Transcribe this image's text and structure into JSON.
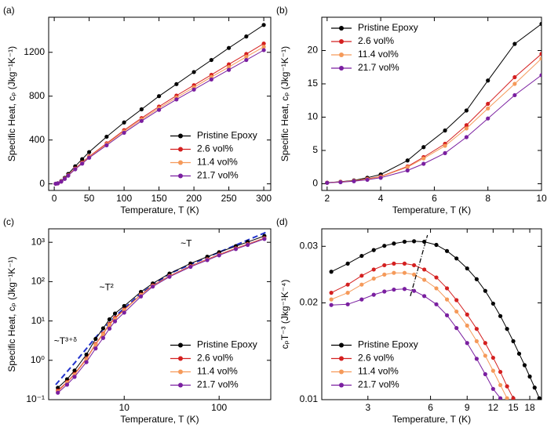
{
  "chart_data": [
    {
      "type": "line",
      "panel_label": "(a)",
      "x_label": "Temperature, T (K)",
      "y_label": "Specific Heat, cₚ (Jkg⁻¹K⁻¹)",
      "xlim": [
        -8,
        310
      ],
      "ylim": [
        -60,
        1520
      ],
      "xticks": [
        0,
        50,
        100,
        150,
        200,
        250,
        300
      ],
      "yticks": [
        0,
        400,
        800,
        1200
      ],
      "legend": "lower right",
      "x": [
        2,
        5,
        10,
        15,
        20,
        30,
        40,
        50,
        75,
        100,
        125,
        150,
        175,
        200,
        225,
        250,
        275,
        300
      ],
      "series": [
        {
          "name": "Pristine Epoxy",
          "color": "#000000",
          "values": [
            1,
            5,
            25,
            55,
            90,
            160,
            225,
            290,
            430,
            560,
            680,
            800,
            910,
            1020,
            1130,
            1240,
            1345,
            1450
          ]
        },
        {
          "name": "2.6 vol%",
          "color": "#d42020",
          "values": [
            1,
            4,
            22,
            48,
            80,
            140,
            195,
            250,
            370,
            490,
            600,
            705,
            805,
            900,
            995,
            1090,
            1185,
            1280
          ]
        },
        {
          "name": "11.4 vol%",
          "color": "#f59a5a",
          "values": [
            1,
            4,
            21,
            47,
            78,
            137,
            190,
            245,
            362,
            478,
            588,
            690,
            787,
            880,
            975,
            1065,
            1160,
            1250
          ]
        },
        {
          "name": "21.7 vol%",
          "color": "#7a1fa0",
          "values": [
            1,
            4,
            20,
            45,
            75,
            133,
            185,
            238,
            352,
            466,
            574,
            675,
            770,
            860,
            952,
            1040,
            1130,
            1220
          ]
        }
      ]
    },
    {
      "type": "line",
      "panel_label": "(b)",
      "x_label": "Temperature, T (K)",
      "y_label": "Specific Heat, cₚ (Jkg⁻¹K⁻¹)",
      "xlim": [
        1.8,
        10
      ],
      "ylim": [
        -1,
        25
      ],
      "xticks": [
        2,
        4,
        6,
        8,
        10
      ],
      "yticks": [
        0,
        5,
        10,
        15,
        20
      ],
      "legend": "upper left",
      "x": [
        2,
        2.5,
        3,
        3.5,
        4,
        5,
        5.6,
        6.4,
        7.2,
        8,
        9,
        10
      ],
      "series": [
        {
          "name": "Pristine Epoxy",
          "color": "#000000",
          "values": [
            0.17,
            0.3,
            0.5,
            0.9,
            1.4,
            3.5,
            5.5,
            8,
            11,
            15.5,
            21,
            24
          ]
        },
        {
          "name": "2.6 vol%",
          "color": "#d42020",
          "values": [
            0.16,
            0.28,
            0.45,
            0.75,
            1.1,
            2.6,
            4,
            6,
            8.8,
            12,
            16,
            19.5
          ]
        },
        {
          "name": "11.4 vol%",
          "color": "#f59a5a",
          "values": [
            0.15,
            0.26,
            0.43,
            0.7,
            1.05,
            2.5,
            3.8,
            5.7,
            8.3,
            11.3,
            15,
            18.8
          ]
        },
        {
          "name": "21.7 vol%",
          "color": "#7a1fa0",
          "values": [
            0.14,
            0.23,
            0.38,
            0.6,
            0.9,
            2,
            3,
            4.6,
            7,
            9.8,
            13.3,
            16.3
          ]
        }
      ]
    },
    {
      "type": "line",
      "panel_label": "(c)",
      "x_label": "Temperature, T (K)",
      "y_label": "Specific Heat, cₚ (Jkg⁻¹K⁻¹)",
      "xscale": "log",
      "yscale": "log",
      "xlim": [
        1.6,
        350
      ],
      "ylim": [
        0.1,
        2200
      ],
      "xticks": [
        10,
        100
      ],
      "yticks": [
        {
          "value": 0.1,
          "label": "10⁻¹"
        },
        {
          "value": 1,
          "label": "10⁰"
        },
        {
          "value": 10,
          "label": "10¹"
        },
        {
          "value": 100,
          "label": "10²"
        },
        {
          "value": 1000,
          "label": "10³"
        }
      ],
      "legend": "lower right",
      "x": [
        2,
        2.5,
        3,
        4,
        5,
        6,
        7,
        8,
        10,
        15,
        20,
        30,
        50,
        75,
        100,
        150,
        200,
        300
      ],
      "series": [
        {
          "name": "Pristine Epoxy",
          "color": "#000000",
          "values": [
            0.2,
            0.33,
            0.55,
            1.4,
            3.5,
            6.5,
            11,
            15.5,
            24,
            55,
            90,
            160,
            290,
            430,
            560,
            800,
            1020,
            1450
          ]
        },
        {
          "name": "2.6 vol%",
          "color": "#d42020",
          "values": [
            0.17,
            0.28,
            0.45,
            1.1,
            2.6,
            4.8,
            8.4,
            12,
            19.5,
            47,
            80,
            140,
            250,
            370,
            490,
            705,
            900,
            1280
          ]
        },
        {
          "name": "11.4 vol%",
          "color": "#f59a5a",
          "values": [
            0.16,
            0.27,
            0.43,
            1.05,
            2.5,
            4.6,
            8,
            11.3,
            18.8,
            46,
            78,
            137,
            245,
            362,
            478,
            690,
            880,
            1250
          ]
        },
        {
          "name": "21.7 vol%",
          "color": "#7a1fa0",
          "values": [
            0.15,
            0.24,
            0.38,
            0.9,
            2,
            3.7,
            6.4,
            9.8,
            16.3,
            42,
            75,
            133,
            238,
            352,
            466,
            675,
            860,
            1220
          ]
        }
      ],
      "fit": {
        "color": "#2233cc",
        "x": [
          1.9,
          3,
          5,
          8,
          15,
          30,
          100,
          330
        ],
        "y": [
          0.24,
          0.85,
          3.8,
          13,
          50,
          160,
          560,
          1900
        ]
      },
      "annotations": [
        {
          "text": "~T",
          "x": 45,
          "y": 900
        },
        {
          "text": "~T²",
          "x": 6.5,
          "y": 70
        },
        {
          "text": "~T³⁺ᵟ",
          "x": 2.4,
          "y": 3
        }
      ]
    },
    {
      "type": "line",
      "panel_label": "(d)",
      "x_label": "Temperature, T (K)",
      "y_label": "cₚT⁻³ (Jkg⁻¹K⁻⁴)",
      "xscale": "log",
      "yscale": "log",
      "xlim": [
        1.8,
        20.5
      ],
      "ylim": [
        0.01,
        0.034
      ],
      "xticks": [
        3,
        6,
        9,
        12,
        15,
        18
      ],
      "yticks": [
        0.01,
        0.02,
        0.03
      ],
      "legend": "lower left",
      "x": [
        2,
        2.4,
        2.8,
        3.2,
        3.6,
        4,
        4.5,
        5,
        5.6,
        6.4,
        7.2,
        8,
        9,
        10,
        11,
        12,
        13,
        14,
        15,
        16,
        17,
        18,
        19,
        20
      ],
      "series": [
        {
          "name": "Pristine Epoxy",
          "color": "#000000",
          "values": [
            0.025,
            0.0265,
            0.028,
            0.0292,
            0.0301,
            0.0306,
            0.031,
            0.0311,
            0.031,
            0.0303,
            0.029,
            0.0275,
            0.0256,
            0.0237,
            0.0218,
            0.0199,
            0.0182,
            0.0166,
            0.0152,
            0.0139,
            0.0128,
            0.0118,
            0.0109,
            0.0101
          ]
        },
        {
          "name": "2.6 vol%",
          "color": "#d42020",
          "values": [
            0.0215,
            0.0228,
            0.0243,
            0.0254,
            0.0262,
            0.0265,
            0.0265,
            0.0262,
            0.0254,
            0.024,
            0.0222,
            0.0204,
            0.0184,
            0.0166,
            0.015,
            0.0135,
            0.0122,
            0.011,
            0.0101,
            null,
            null,
            null,
            null,
            null
          ]
        },
        {
          "name": "11.4 vol%",
          "color": "#f59a5a",
          "values": [
            0.0205,
            0.0215,
            0.0228,
            0.0238,
            0.0245,
            0.0248,
            0.0248,
            0.0245,
            0.0236,
            0.0222,
            0.0205,
            0.0188,
            0.017,
            0.0152,
            0.0137,
            0.0123,
            0.0111,
            0.0101,
            null,
            null,
            null,
            null,
            null,
            null
          ]
        },
        {
          "name": "21.7 vol%",
          "color": "#7a1fa0",
          "values": [
            0.0197,
            0.0198,
            0.0205,
            0.0212,
            0.0217,
            0.022,
            0.0221,
            0.0218,
            0.021,
            0.0198,
            0.0183,
            0.0167,
            0.015,
            0.0134,
            0.012,
            0.0108,
            0.0101,
            null,
            null,
            null,
            null,
            null,
            null,
            null
          ]
        }
      ],
      "guide": {
        "x": [
          4.8,
          5.8
        ],
        "y": [
          0.021,
          0.0325
        ]
      }
    }
  ]
}
